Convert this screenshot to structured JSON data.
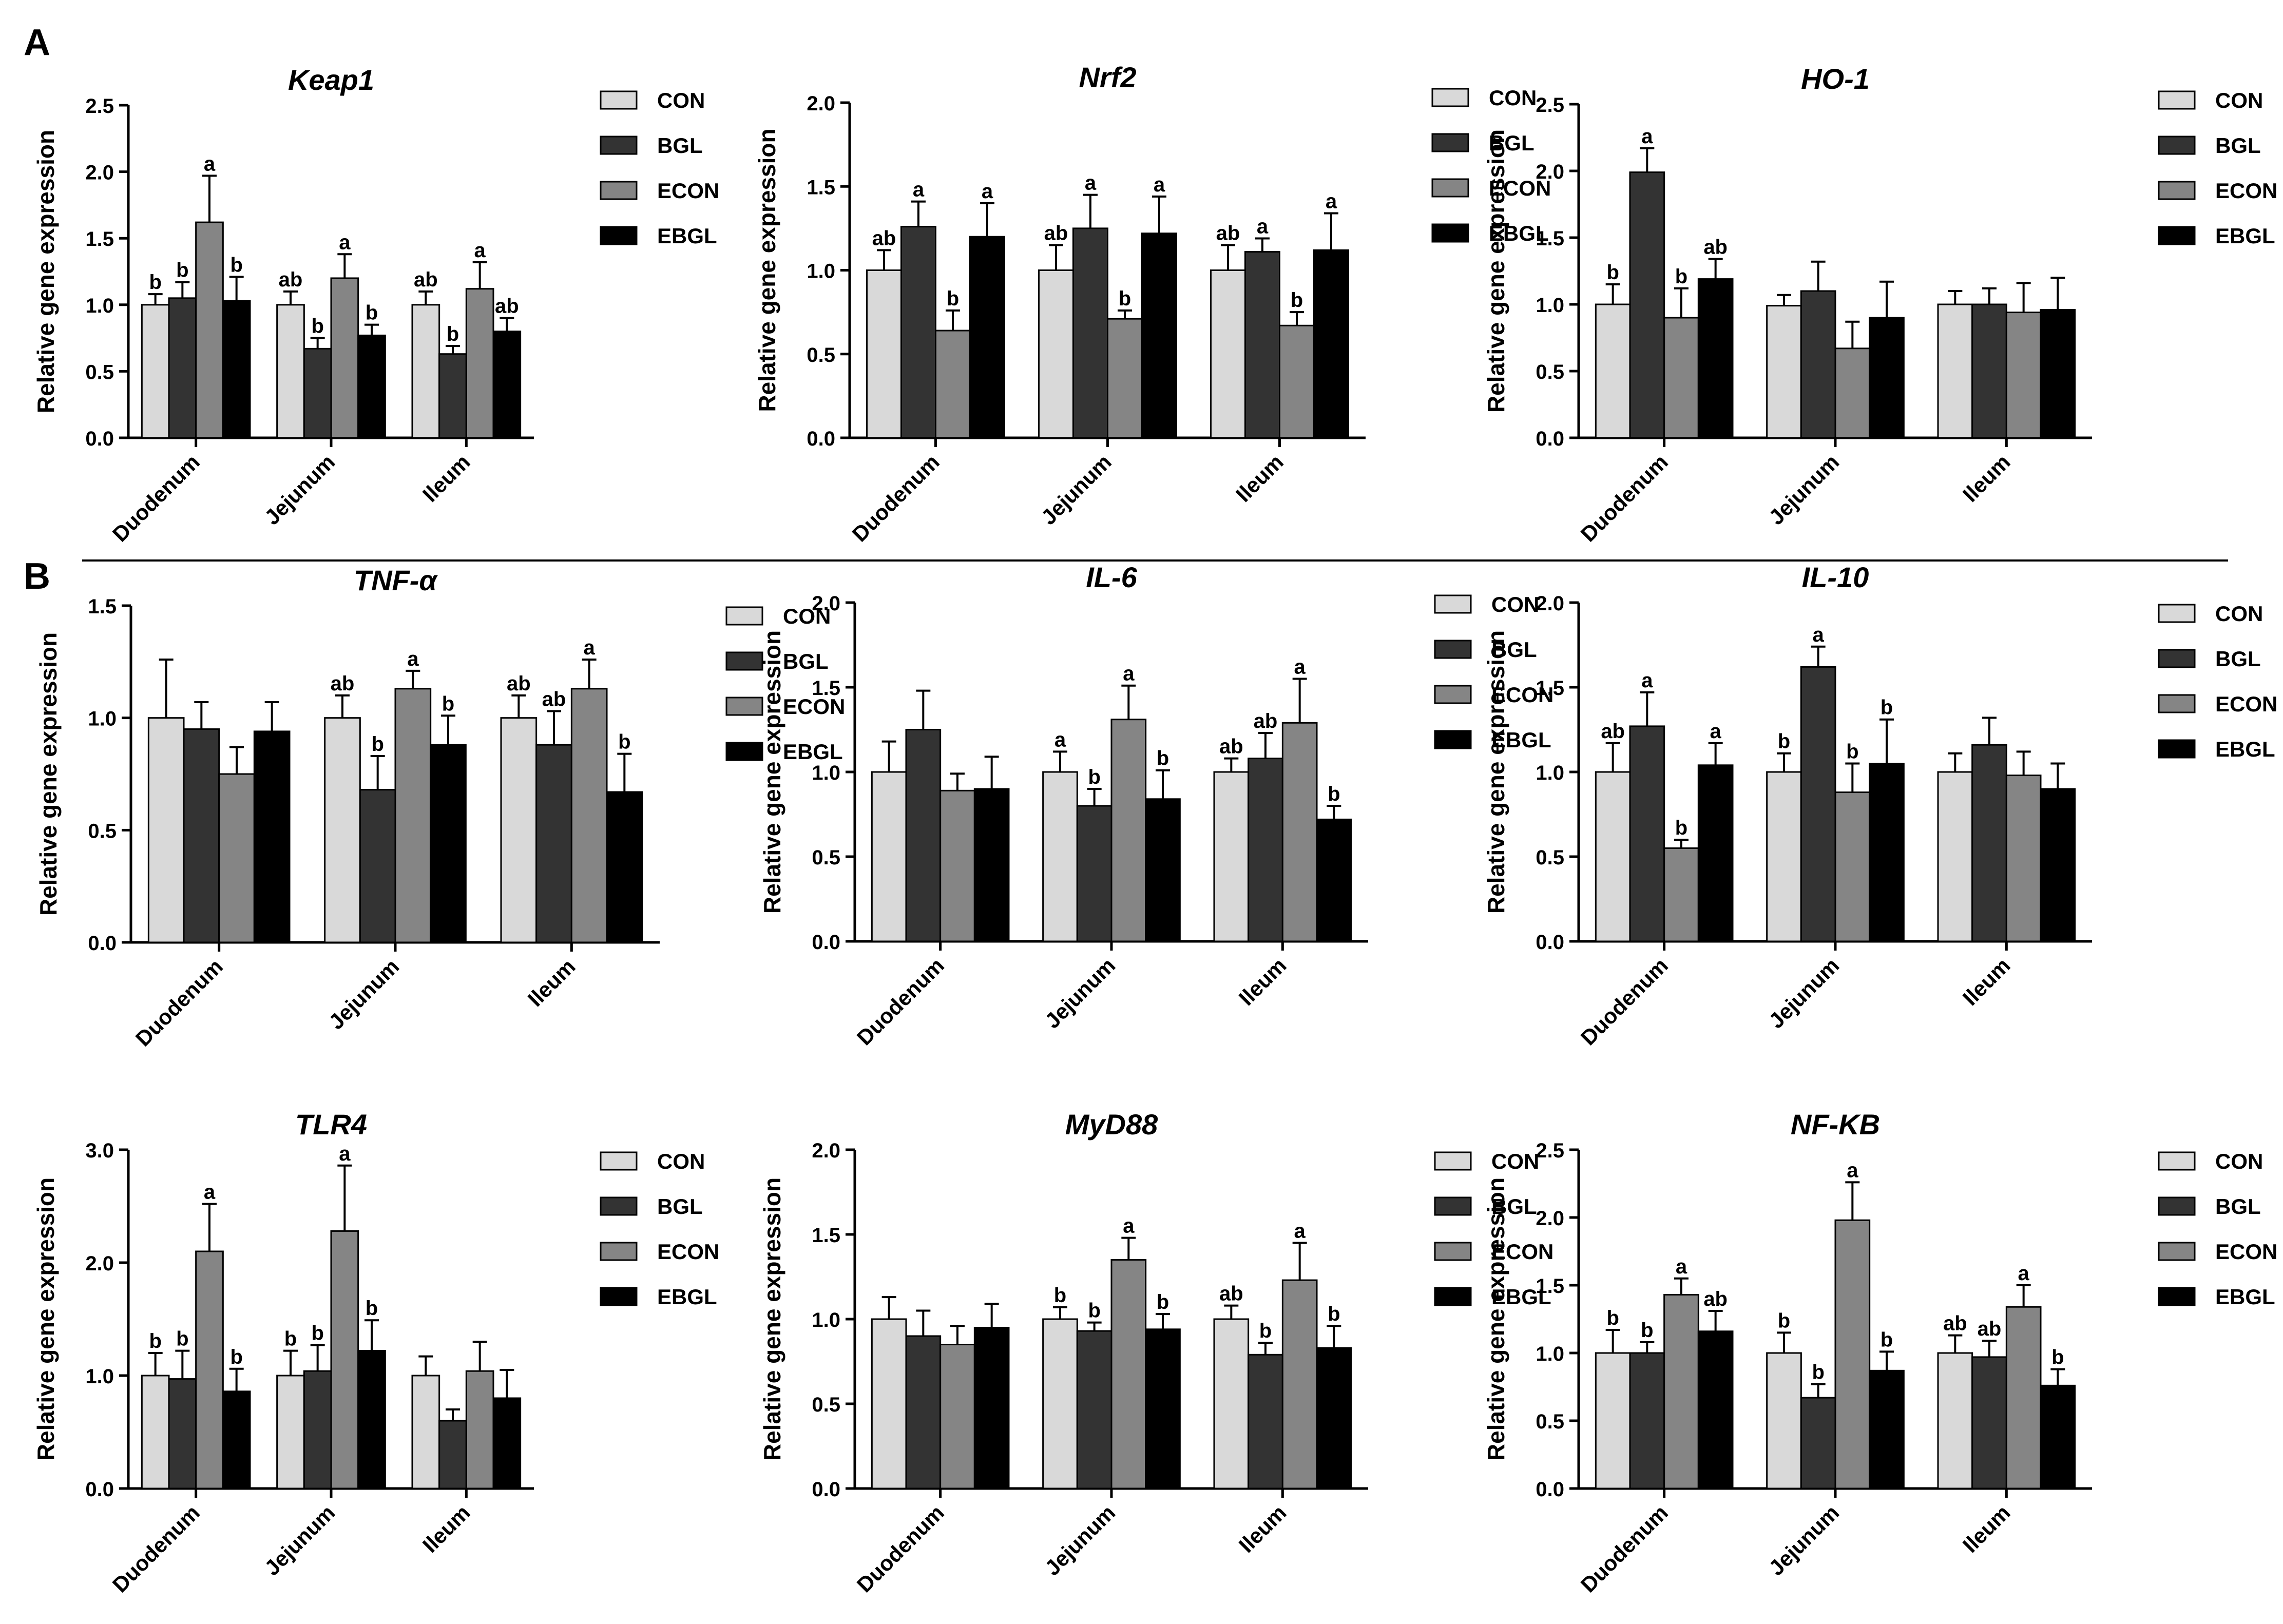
{
  "panels": {
    "a": "A",
    "b": "B"
  },
  "colors": {
    "CON": "#d9d9d9",
    "BGL": "#333333",
    "ECON": "#858585",
    "EBGL": "#000000",
    "axis": "#000000"
  },
  "chart_data": [
    {
      "type": "bar",
      "title": "Keap1",
      "ylabel": "Relative gene expression",
      "ylim": [
        0,
        2.5
      ],
      "yticks": [
        "0.0",
        "0.5",
        "1.0",
        "1.5",
        "2.0",
        "2.5"
      ],
      "categories": [
        "Duodenum",
        "Jejunum",
        "Ileum"
      ],
      "series": [
        {
          "name": "CON",
          "values": [
            1.0,
            1.0,
            1.0
          ],
          "errors": [
            0.08,
            0.1,
            0.1
          ],
          "letters": [
            "b",
            "ab",
            "ab"
          ]
        },
        {
          "name": "BGL",
          "values": [
            1.05,
            0.67,
            0.63
          ],
          "errors": [
            0.12,
            0.08,
            0.06
          ],
          "letters": [
            "b",
            "b",
            "b"
          ]
        },
        {
          "name": "ECON",
          "values": [
            1.62,
            1.2,
            1.12
          ],
          "errors": [
            0.35,
            0.18,
            0.2
          ],
          "letters": [
            "a",
            "a",
            "a"
          ]
        },
        {
          "name": "EBGL",
          "values": [
            1.03,
            0.77,
            0.8
          ],
          "errors": [
            0.18,
            0.08,
            0.1
          ],
          "letters": [
            "b",
            "b",
            "ab"
          ]
        }
      ]
    },
    {
      "type": "bar",
      "title": "Nrf2",
      "ylabel": "Relative gene expression",
      "ylim": [
        0,
        2.0
      ],
      "yticks": [
        "0.0",
        "0.5",
        "1.0",
        "1.5",
        "2.0"
      ],
      "categories": [
        "Duodenum",
        "Jejunum",
        "Ileum"
      ],
      "series": [
        {
          "name": "CON",
          "values": [
            1.0,
            1.0,
            1.0
          ],
          "errors": [
            0.12,
            0.15,
            0.15
          ],
          "letters": [
            "ab",
            "ab",
            "ab"
          ]
        },
        {
          "name": "BGL",
          "values": [
            1.26,
            1.25,
            1.11
          ],
          "errors": [
            0.15,
            0.2,
            0.08
          ],
          "letters": [
            "a",
            "a",
            "a"
          ]
        },
        {
          "name": "ECON",
          "values": [
            0.64,
            0.71,
            0.67
          ],
          "errors": [
            0.12,
            0.05,
            0.08
          ],
          "letters": [
            "b",
            "b",
            "b"
          ]
        },
        {
          "name": "EBGL",
          "values": [
            1.2,
            1.22,
            1.12
          ],
          "errors": [
            0.2,
            0.22,
            0.22
          ],
          "letters": [
            "a",
            "a",
            "a"
          ]
        }
      ]
    },
    {
      "type": "bar",
      "title": "HO-1",
      "ylabel": "Relative gene expression",
      "ylim": [
        0,
        2.5
      ],
      "yticks": [
        "0.0",
        "0.5",
        "1.0",
        "1.5",
        "2.0",
        "2.5"
      ],
      "categories": [
        "Duodenum",
        "Jejunum",
        "Ileum"
      ],
      "series": [
        {
          "name": "CON",
          "values": [
            1.0,
            0.99,
            1.0
          ],
          "errors": [
            0.15,
            0.08,
            0.1
          ],
          "letters": [
            "b",
            "",
            ""
          ]
        },
        {
          "name": "BGL",
          "values": [
            1.99,
            1.1,
            1.0
          ],
          "errors": [
            0.18,
            0.22,
            0.12
          ],
          "letters": [
            "a",
            "",
            ""
          ]
        },
        {
          "name": "ECON",
          "values": [
            0.9,
            0.67,
            0.94
          ],
          "errors": [
            0.22,
            0.2,
            0.22
          ],
          "letters": [
            "b",
            "",
            ""
          ]
        },
        {
          "name": "EBGL",
          "values": [
            1.19,
            0.9,
            0.96
          ],
          "errors": [
            0.15,
            0.27,
            0.24
          ],
          "letters": [
            "ab",
            "",
            ""
          ]
        }
      ]
    },
    {
      "type": "bar",
      "title": "TNF-α",
      "ylabel": "Relative gene expression",
      "ylim": [
        0,
        1.5
      ],
      "yticks": [
        "0.0",
        "0.5",
        "1.0",
        "1.5"
      ],
      "categories": [
        "Duodenum",
        "Jejunum",
        "Ileum"
      ],
      "series": [
        {
          "name": "CON",
          "values": [
            1.0,
            1.0,
            1.0
          ],
          "errors": [
            0.26,
            0.1,
            0.1
          ],
          "letters": [
            "",
            "ab",
            "ab"
          ]
        },
        {
          "name": "BGL",
          "values": [
            0.95,
            0.68,
            0.88
          ],
          "errors": [
            0.12,
            0.15,
            0.15
          ],
          "letters": [
            "",
            "b",
            "ab"
          ]
        },
        {
          "name": "ECON",
          "values": [
            0.75,
            1.13,
            1.13
          ],
          "errors": [
            0.12,
            0.08,
            0.13
          ],
          "letters": [
            "",
            "a",
            "a"
          ]
        },
        {
          "name": "EBGL",
          "values": [
            0.94,
            0.88,
            0.67
          ],
          "errors": [
            0.13,
            0.13,
            0.17
          ],
          "letters": [
            "",
            "b",
            "b"
          ]
        }
      ]
    },
    {
      "type": "bar",
      "title": "IL-6",
      "ylabel": "Relative gene expression",
      "ylim": [
        0,
        2.0
      ],
      "yticks": [
        "0.0",
        "0.5",
        "1.0",
        "1.5",
        "2.0"
      ],
      "categories": [
        "Duodenum",
        "Jejunum",
        "Ileum"
      ],
      "series": [
        {
          "name": "CON",
          "values": [
            1.0,
            1.0,
            1.0
          ],
          "errors": [
            0.18,
            0.12,
            0.08
          ],
          "letters": [
            "",
            "a",
            "ab"
          ]
        },
        {
          "name": "BGL",
          "values": [
            1.25,
            0.8,
            1.08
          ],
          "errors": [
            0.23,
            0.1,
            0.15
          ],
          "letters": [
            "",
            "b",
            "ab"
          ]
        },
        {
          "name": "ECON",
          "values": [
            0.89,
            1.31,
            1.29
          ],
          "errors": [
            0.1,
            0.2,
            0.26
          ],
          "letters": [
            "",
            "a",
            "a"
          ]
        },
        {
          "name": "EBGL",
          "values": [
            0.9,
            0.84,
            0.72
          ],
          "errors": [
            0.19,
            0.17,
            0.08
          ],
          "letters": [
            "",
            "b",
            "b"
          ]
        }
      ]
    },
    {
      "type": "bar",
      "title": "IL-10",
      "ylabel": "Relative gene expression",
      "ylim": [
        0,
        2.0
      ],
      "yticks": [
        "0.0",
        "0.5",
        "1.0",
        "1.5",
        "2.0"
      ],
      "categories": [
        "Duodenum",
        "Jejunum",
        "Ileum"
      ],
      "series": [
        {
          "name": "CON",
          "values": [
            1.0,
            1.0,
            1.0
          ],
          "errors": [
            0.17,
            0.11,
            0.11
          ],
          "letters": [
            "ab",
            "b",
            ""
          ]
        },
        {
          "name": "BGL",
          "values": [
            1.27,
            1.62,
            1.16
          ],
          "errors": [
            0.2,
            0.12,
            0.16
          ],
          "letters": [
            "a",
            "a",
            ""
          ]
        },
        {
          "name": "ECON",
          "values": [
            0.55,
            0.88,
            0.98
          ],
          "errors": [
            0.05,
            0.17,
            0.14
          ],
          "letters": [
            "b",
            "b",
            ""
          ]
        },
        {
          "name": "EBGL",
          "values": [
            1.04,
            1.05,
            0.9
          ],
          "errors": [
            0.13,
            0.26,
            0.15
          ],
          "letters": [
            "a",
            "b",
            ""
          ]
        }
      ]
    },
    {
      "type": "bar",
      "title": "TLR4",
      "ylabel": "Relative gene expression",
      "ylim": [
        0,
        3.0
      ],
      "yticks": [
        "0.0",
        "1.0",
        "2.0",
        "3.0"
      ],
      "categories": [
        "Duodenum",
        "Jejunum",
        "Ileum"
      ],
      "series": [
        {
          "name": "CON",
          "values": [
            1.0,
            1.0,
            1.0
          ],
          "errors": [
            0.2,
            0.22,
            0.17
          ],
          "letters": [
            "b",
            "b",
            ""
          ]
        },
        {
          "name": "BGL",
          "values": [
            0.97,
            1.04,
            0.6
          ],
          "errors": [
            0.25,
            0.23,
            0.1
          ],
          "letters": [
            "b",
            "b",
            ""
          ]
        },
        {
          "name": "ECON",
          "values": [
            2.1,
            2.28,
            1.04
          ],
          "errors": [
            0.42,
            0.58,
            0.26
          ],
          "letters": [
            "a",
            "a",
            ""
          ]
        },
        {
          "name": "EBGL",
          "values": [
            0.86,
            1.22,
            0.8
          ],
          "errors": [
            0.2,
            0.27,
            0.25
          ],
          "letters": [
            "b",
            "b",
            ""
          ]
        }
      ]
    },
    {
      "type": "bar",
      "title": "MyD88",
      "ylabel": "Relative gene expression",
      "ylim": [
        0,
        2.0
      ],
      "yticks": [
        "0.0",
        "0.5",
        "1.0",
        "1.5",
        "2.0"
      ],
      "categories": [
        "Duodenum",
        "Jejunum",
        "Ileum"
      ],
      "series": [
        {
          "name": "CON",
          "values": [
            1.0,
            1.0,
            1.0
          ],
          "errors": [
            0.13,
            0.07,
            0.08
          ],
          "letters": [
            "",
            "b",
            "ab"
          ]
        },
        {
          "name": "BGL",
          "values": [
            0.9,
            0.93,
            0.79
          ],
          "errors": [
            0.15,
            0.05,
            0.07
          ],
          "letters": [
            "",
            "b",
            "b"
          ]
        },
        {
          "name": "ECON",
          "values": [
            0.85,
            1.35,
            1.23
          ],
          "errors": [
            0.11,
            0.13,
            0.22
          ],
          "letters": [
            "",
            "a",
            "a"
          ]
        },
        {
          "name": "EBGL",
          "values": [
            0.95,
            0.94,
            0.83
          ],
          "errors": [
            0.14,
            0.09,
            0.13
          ],
          "letters": [
            "",
            "b",
            "b"
          ]
        }
      ]
    },
    {
      "type": "bar",
      "title": "NF-KB",
      "ylabel": "Relative gene expression",
      "ylim": [
        0,
        2.5
      ],
      "yticks": [
        "0.0",
        "0.5",
        "1.0",
        "1.5",
        "2.0",
        "2.5"
      ],
      "categories": [
        "Duodenum",
        "Jejunum",
        "Ileum"
      ],
      "series": [
        {
          "name": "CON",
          "values": [
            1.0,
            1.0,
            1.0
          ],
          "errors": [
            0.17,
            0.15,
            0.13
          ],
          "letters": [
            "b",
            "b",
            "ab"
          ]
        },
        {
          "name": "BGL",
          "values": [
            1.0,
            0.67,
            0.97
          ],
          "errors": [
            0.08,
            0.1,
            0.12
          ],
          "letters": [
            "b",
            "b",
            "ab"
          ]
        },
        {
          "name": "ECON",
          "values": [
            1.43,
            1.98,
            1.34
          ],
          "errors": [
            0.12,
            0.28,
            0.16
          ],
          "letters": [
            "a",
            "a",
            "a"
          ]
        },
        {
          "name": "EBGL",
          "values": [
            1.16,
            0.87,
            0.76
          ],
          "errors": [
            0.15,
            0.14,
            0.12
          ],
          "letters": [
            "ab",
            "b",
            "b"
          ]
        }
      ]
    }
  ]
}
